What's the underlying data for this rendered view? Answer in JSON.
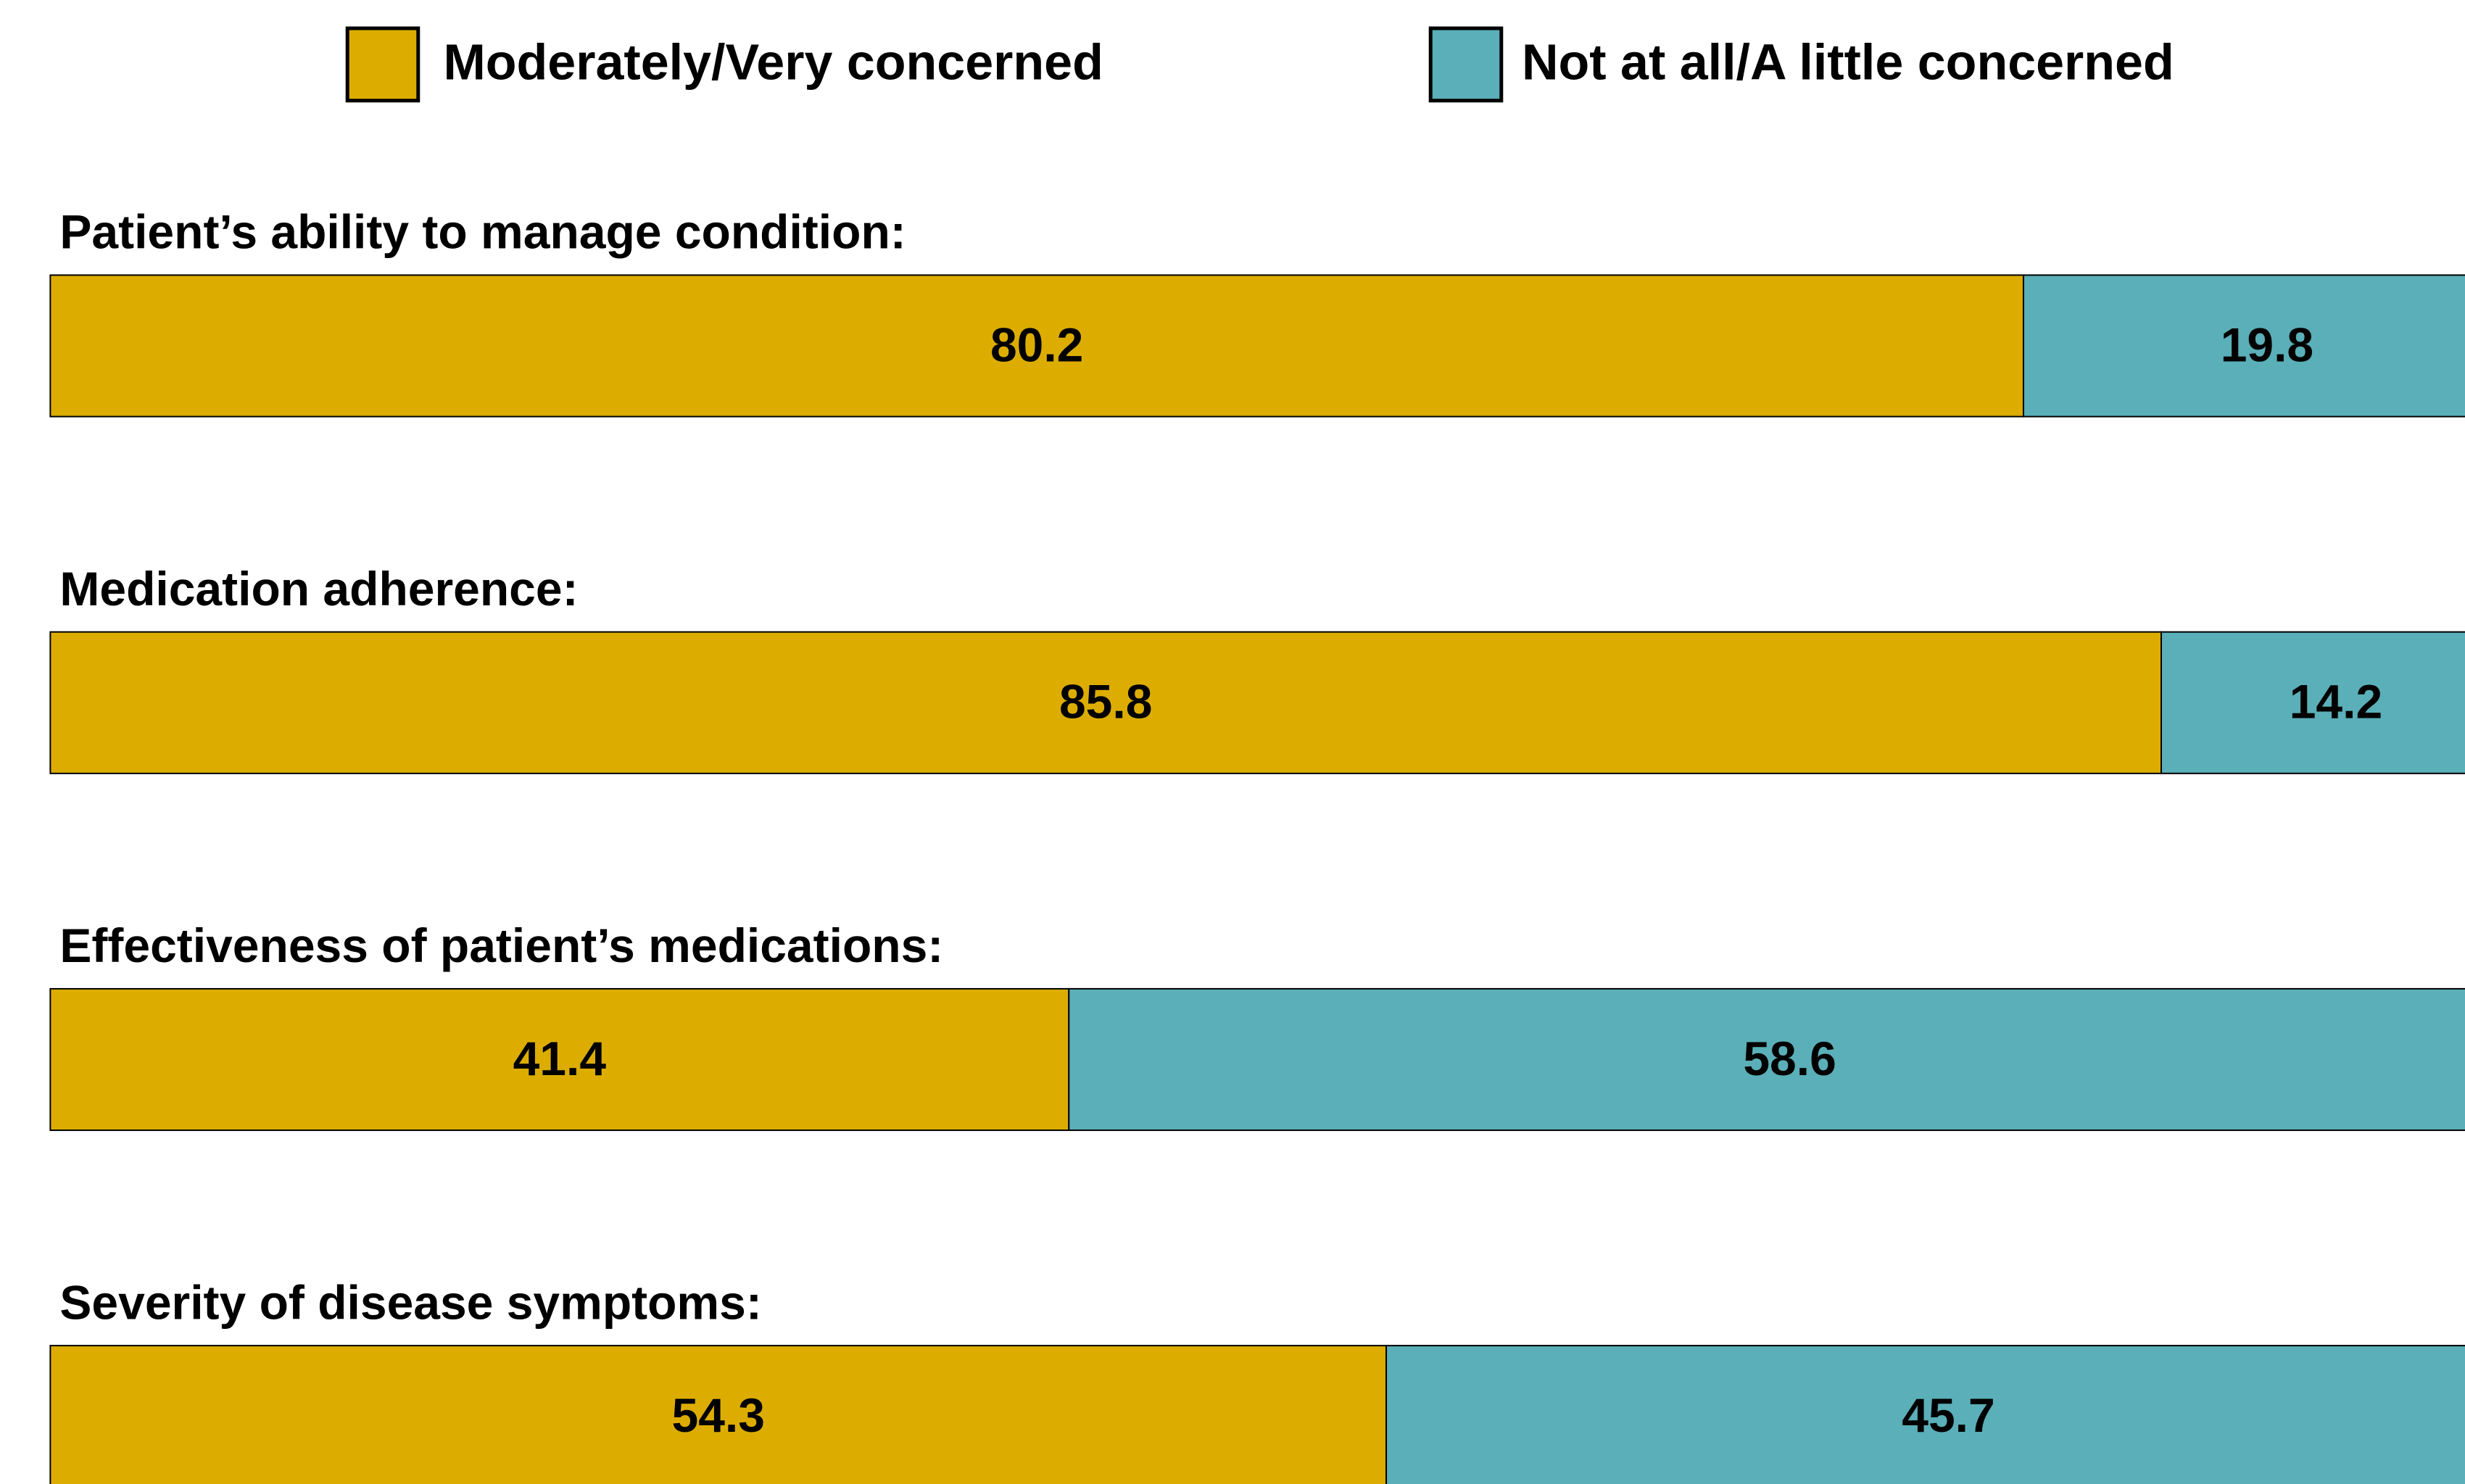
{
  "chart_data": {
    "type": "bar",
    "orientation": "horizontal",
    "stacked": true,
    "categories": [
      "Patient’s ability to manage condition:",
      "Medication adherence:",
      "Effectiveness of patient’s medications:",
      "Severity of disease symptoms:"
    ],
    "series": [
      {
        "name": "Moderately/Very concerned",
        "color": "#dcad00",
        "values": [
          80.2,
          85.8,
          41.4,
          54.3
        ]
      },
      {
        "name": "Not at all/A little concerned",
        "color": "#5aafb8",
        "values": [
          19.8,
          14.2,
          58.6,
          45.7
        ]
      }
    ]
  }
}
